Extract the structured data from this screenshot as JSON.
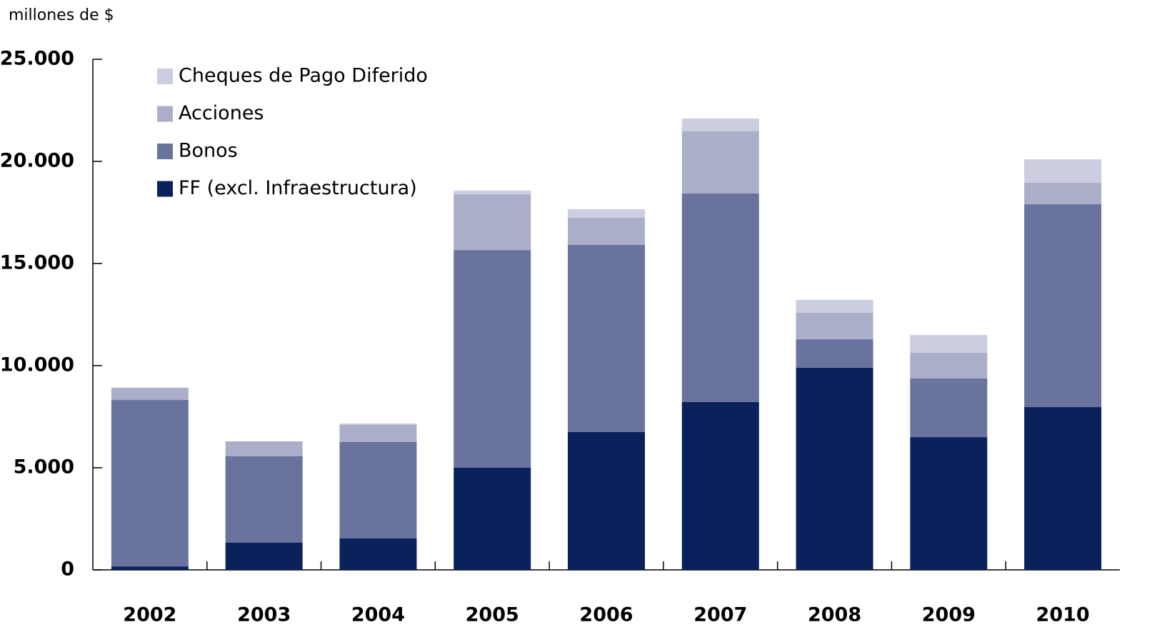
{
  "chart_data": {
    "type": "stacked-bar",
    "y_label": "millones de $",
    "categories": [
      "2002",
      "2003",
      "2004",
      "2005",
      "2006",
      "2007",
      "2008",
      "2009",
      "2010"
    ],
    "series": [
      {
        "name": "FF (excl. Infraestructura)",
        "color": "#0b215b",
        "values": [
          170,
          1330,
          1540,
          5000,
          6750,
          8220,
          9900,
          6500,
          7970
        ]
      },
      {
        "name": "Bonos",
        "color": "#69739e",
        "values": [
          8150,
          4230,
          4720,
          10660,
          9160,
          10210,
          1390,
          2870,
          9930
        ]
      },
      {
        "name": "Acciones",
        "color": "#abaec9",
        "values": [
          600,
          730,
          840,
          2730,
          1330,
          3040,
          1300,
          1260,
          1050
        ]
      },
      {
        "name": "Cheques de Pago Diferido",
        "color": "#cbcde0",
        "values": [
          0,
          0,
          70,
          180,
          420,
          630,
          630,
          870,
          1150
        ]
      }
    ],
    "ylim": [
      0,
      25000
    ],
    "yticks": [
      0,
      {
        "value": 5000,
        "label": "5.000"
      },
      {
        "value": 10000,
        "label": "10.000"
      },
      {
        "value": 15000,
        "label": "15.000"
      },
      {
        "value": 20000,
        "label": "20.000"
      },
      {
        "value": 25000,
        "label": "25.000"
      }
    ],
    "legend": "upper left"
  }
}
